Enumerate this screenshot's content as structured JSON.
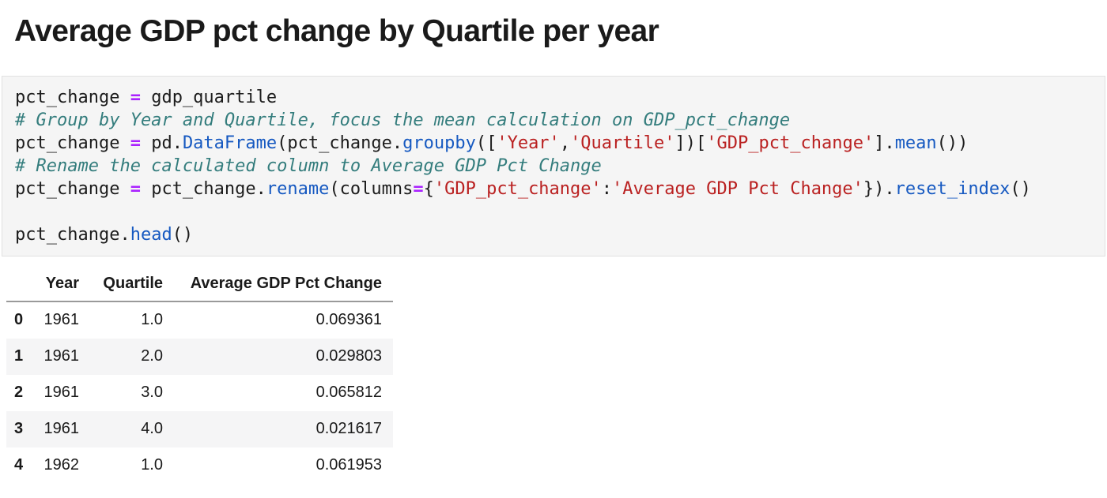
{
  "page": {
    "title": "Average GDP pct change by Quartile per year"
  },
  "colors": {
    "operator": "#AA22FF",
    "comment": "#347D7D",
    "string": "#BA2121",
    "function": "#1659C1",
    "code_text": "#1C1C1C",
    "code_background": "#F5F5F5",
    "code_border": "#E1E1E1",
    "table_stripe": "#F5F5F6",
    "header_rule": "#9A9A9A"
  },
  "code_cell": {
    "language": "python",
    "lines": [
      [
        {
          "text": "pct_change ",
          "type": "plain"
        },
        {
          "text": "=",
          "type": "op"
        },
        {
          "text": " gdp_quartile",
          "type": "plain"
        }
      ],
      [
        {
          "text": "# Group by Year and Quartile, focus the mean calculation on GDP_pct_change",
          "type": "comment"
        }
      ],
      [
        {
          "text": "pct_change ",
          "type": "plain"
        },
        {
          "text": "=",
          "type": "op"
        },
        {
          "text": " pd.",
          "type": "plain"
        },
        {
          "text": "DataFrame",
          "type": "func"
        },
        {
          "text": "(pct_change.",
          "type": "plain"
        },
        {
          "text": "groupby",
          "type": "func"
        },
        {
          "text": "([",
          "type": "plain"
        },
        {
          "text": "'Year'",
          "type": "str"
        },
        {
          "text": ",",
          "type": "plain"
        },
        {
          "text": "'Quartile'",
          "type": "str"
        },
        {
          "text": "])[",
          "type": "plain"
        },
        {
          "text": "'GDP_pct_change'",
          "type": "str"
        },
        {
          "text": "].",
          "type": "plain"
        },
        {
          "text": "mean",
          "type": "func"
        },
        {
          "text": "())",
          "type": "plain"
        }
      ],
      [
        {
          "text": "# Rename the calculated column to Average GDP Pct Change",
          "type": "comment"
        }
      ],
      [
        {
          "text": "pct_change ",
          "type": "plain"
        },
        {
          "text": "=",
          "type": "op"
        },
        {
          "text": " pct_change.",
          "type": "plain"
        },
        {
          "text": "rename",
          "type": "func"
        },
        {
          "text": "(columns",
          "type": "plain"
        },
        {
          "text": "=",
          "type": "op"
        },
        {
          "text": "{",
          "type": "plain"
        },
        {
          "text": "'GDP_pct_change'",
          "type": "str"
        },
        {
          "text": ":",
          "type": "plain"
        },
        {
          "text": "'Average GDP Pct Change'",
          "type": "str"
        },
        {
          "text": "}).",
          "type": "plain"
        },
        {
          "text": "reset_index",
          "type": "func"
        },
        {
          "text": "()",
          "type": "plain"
        }
      ],
      [],
      [
        {
          "text": "pct_change.",
          "type": "plain"
        },
        {
          "text": "head",
          "type": "func"
        },
        {
          "text": "()",
          "type": "plain"
        }
      ]
    ]
  },
  "dataframe": {
    "columns": [
      "Year",
      "Quartile",
      "Average GDP Pct Change"
    ],
    "rows": [
      {
        "index": "0",
        "year": "1961",
        "quartile": "1.0",
        "avg_gdp_pct_change": "0.069361"
      },
      {
        "index": "1",
        "year": "1961",
        "quartile": "2.0",
        "avg_gdp_pct_change": "0.029803"
      },
      {
        "index": "2",
        "year": "1961",
        "quartile": "3.0",
        "avg_gdp_pct_change": "0.065812"
      },
      {
        "index": "3",
        "year": "1961",
        "quartile": "4.0",
        "avg_gdp_pct_change": "0.021617"
      },
      {
        "index": "4",
        "year": "1962",
        "quartile": "1.0",
        "avg_gdp_pct_change": "0.061953"
      }
    ]
  }
}
